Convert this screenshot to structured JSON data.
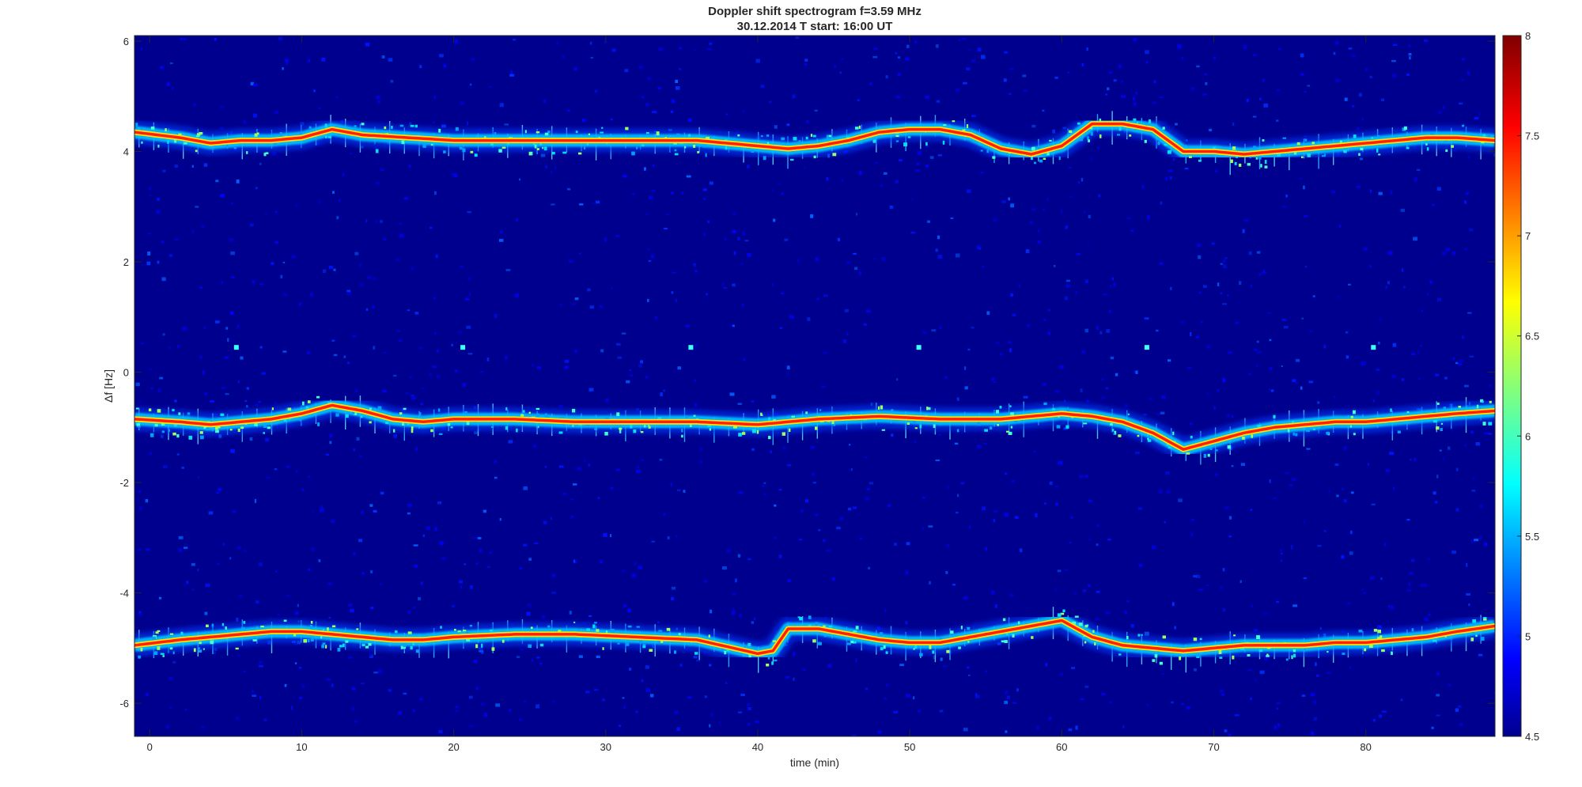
{
  "chart_data": {
    "type": "heatmap",
    "title": "Doppler shift spectrogram f=3.59 MHz",
    "subtitle": "30.12.2014   T start: 16:00 UT",
    "xlabel": "time (min)",
    "ylabel": "Δf [Hz]",
    "xlim": [
      -1,
      88.5
    ],
    "ylim": [
      -6.6,
      6.1
    ],
    "xticks": [
      0,
      10,
      20,
      30,
      40,
      50,
      60,
      70,
      80
    ],
    "yticks": [
      6,
      4,
      2,
      0,
      -2,
      -4,
      -6
    ],
    "colormap": "jet",
    "clim": [
      4.5,
      8
    ],
    "colorbar_ticks": [
      8,
      7.5,
      7,
      6.5,
      6,
      5.5,
      5,
      4.5
    ],
    "grid": false,
    "background_level": 4.6,
    "traces": [
      {
        "name": "upper",
        "x": [
          -1,
          2,
          4,
          6,
          8,
          10,
          12,
          14,
          17,
          20,
          24,
          28,
          32,
          36,
          38,
          40,
          42,
          44,
          46,
          48,
          50,
          52,
          54,
          56,
          58,
          60,
          62,
          64,
          66,
          68,
          70,
          72,
          74,
          76,
          78,
          80,
          82,
          84,
          86,
          88.5
        ],
        "y": [
          4.35,
          4.25,
          4.15,
          4.2,
          4.2,
          4.25,
          4.4,
          4.3,
          4.25,
          4.2,
          4.2,
          4.2,
          4.2,
          4.2,
          4.15,
          4.1,
          4.05,
          4.1,
          4.2,
          4.35,
          4.4,
          4.4,
          4.3,
          4.05,
          3.95,
          4.1,
          4.5,
          4.5,
          4.4,
          4.0,
          4.0,
          3.95,
          4.0,
          4.05,
          4.1,
          4.15,
          4.2,
          4.25,
          4.25,
          4.2
        ]
      },
      {
        "name": "middle",
        "x": [
          -1,
          2,
          4,
          6,
          8,
          10,
          12,
          14,
          16,
          18,
          20,
          24,
          28,
          32,
          36,
          40,
          44,
          48,
          52,
          56,
          60,
          62,
          64,
          66,
          68,
          70,
          72,
          74,
          76,
          78,
          80,
          82,
          84,
          86,
          88.5
        ],
        "y": [
          -0.85,
          -0.9,
          -0.95,
          -0.9,
          -0.85,
          -0.75,
          -0.6,
          -0.7,
          -0.85,
          -0.9,
          -0.85,
          -0.85,
          -0.9,
          -0.9,
          -0.9,
          -0.95,
          -0.85,
          -0.8,
          -0.85,
          -0.85,
          -0.75,
          -0.8,
          -0.9,
          -1.1,
          -1.4,
          -1.25,
          -1.1,
          -1.0,
          -0.95,
          -0.9,
          -0.9,
          -0.85,
          -0.8,
          -0.75,
          -0.7
        ]
      },
      {
        "name": "lower",
        "x": [
          -1,
          2,
          4,
          6,
          8,
          10,
          12,
          14,
          16,
          18,
          20,
          24,
          28,
          32,
          36,
          40,
          41,
          42,
          44,
          46,
          48,
          50,
          52,
          54,
          56,
          58,
          60,
          62,
          64,
          66,
          68,
          70,
          72,
          74,
          76,
          78,
          80,
          82,
          84,
          86,
          88.5
        ],
        "y": [
          -4.95,
          -4.85,
          -4.8,
          -4.75,
          -4.7,
          -4.7,
          -4.75,
          -4.8,
          -4.85,
          -4.85,
          -4.8,
          -4.75,
          -4.75,
          -4.8,
          -4.85,
          -5.1,
          -5.05,
          -4.65,
          -4.65,
          -4.75,
          -4.85,
          -4.9,
          -4.9,
          -4.8,
          -4.7,
          -4.6,
          -4.5,
          -4.8,
          -4.95,
          -5.0,
          -5.05,
          -5.0,
          -4.95,
          -4.95,
          -4.95,
          -4.9,
          -4.9,
          -4.85,
          -4.8,
          -4.7,
          -4.6
        ]
      }
    ],
    "markers": {
      "y": 0.45,
      "x": [
        5.7,
        20.6,
        35.6,
        50.6,
        65.6,
        80.5
      ]
    }
  }
}
